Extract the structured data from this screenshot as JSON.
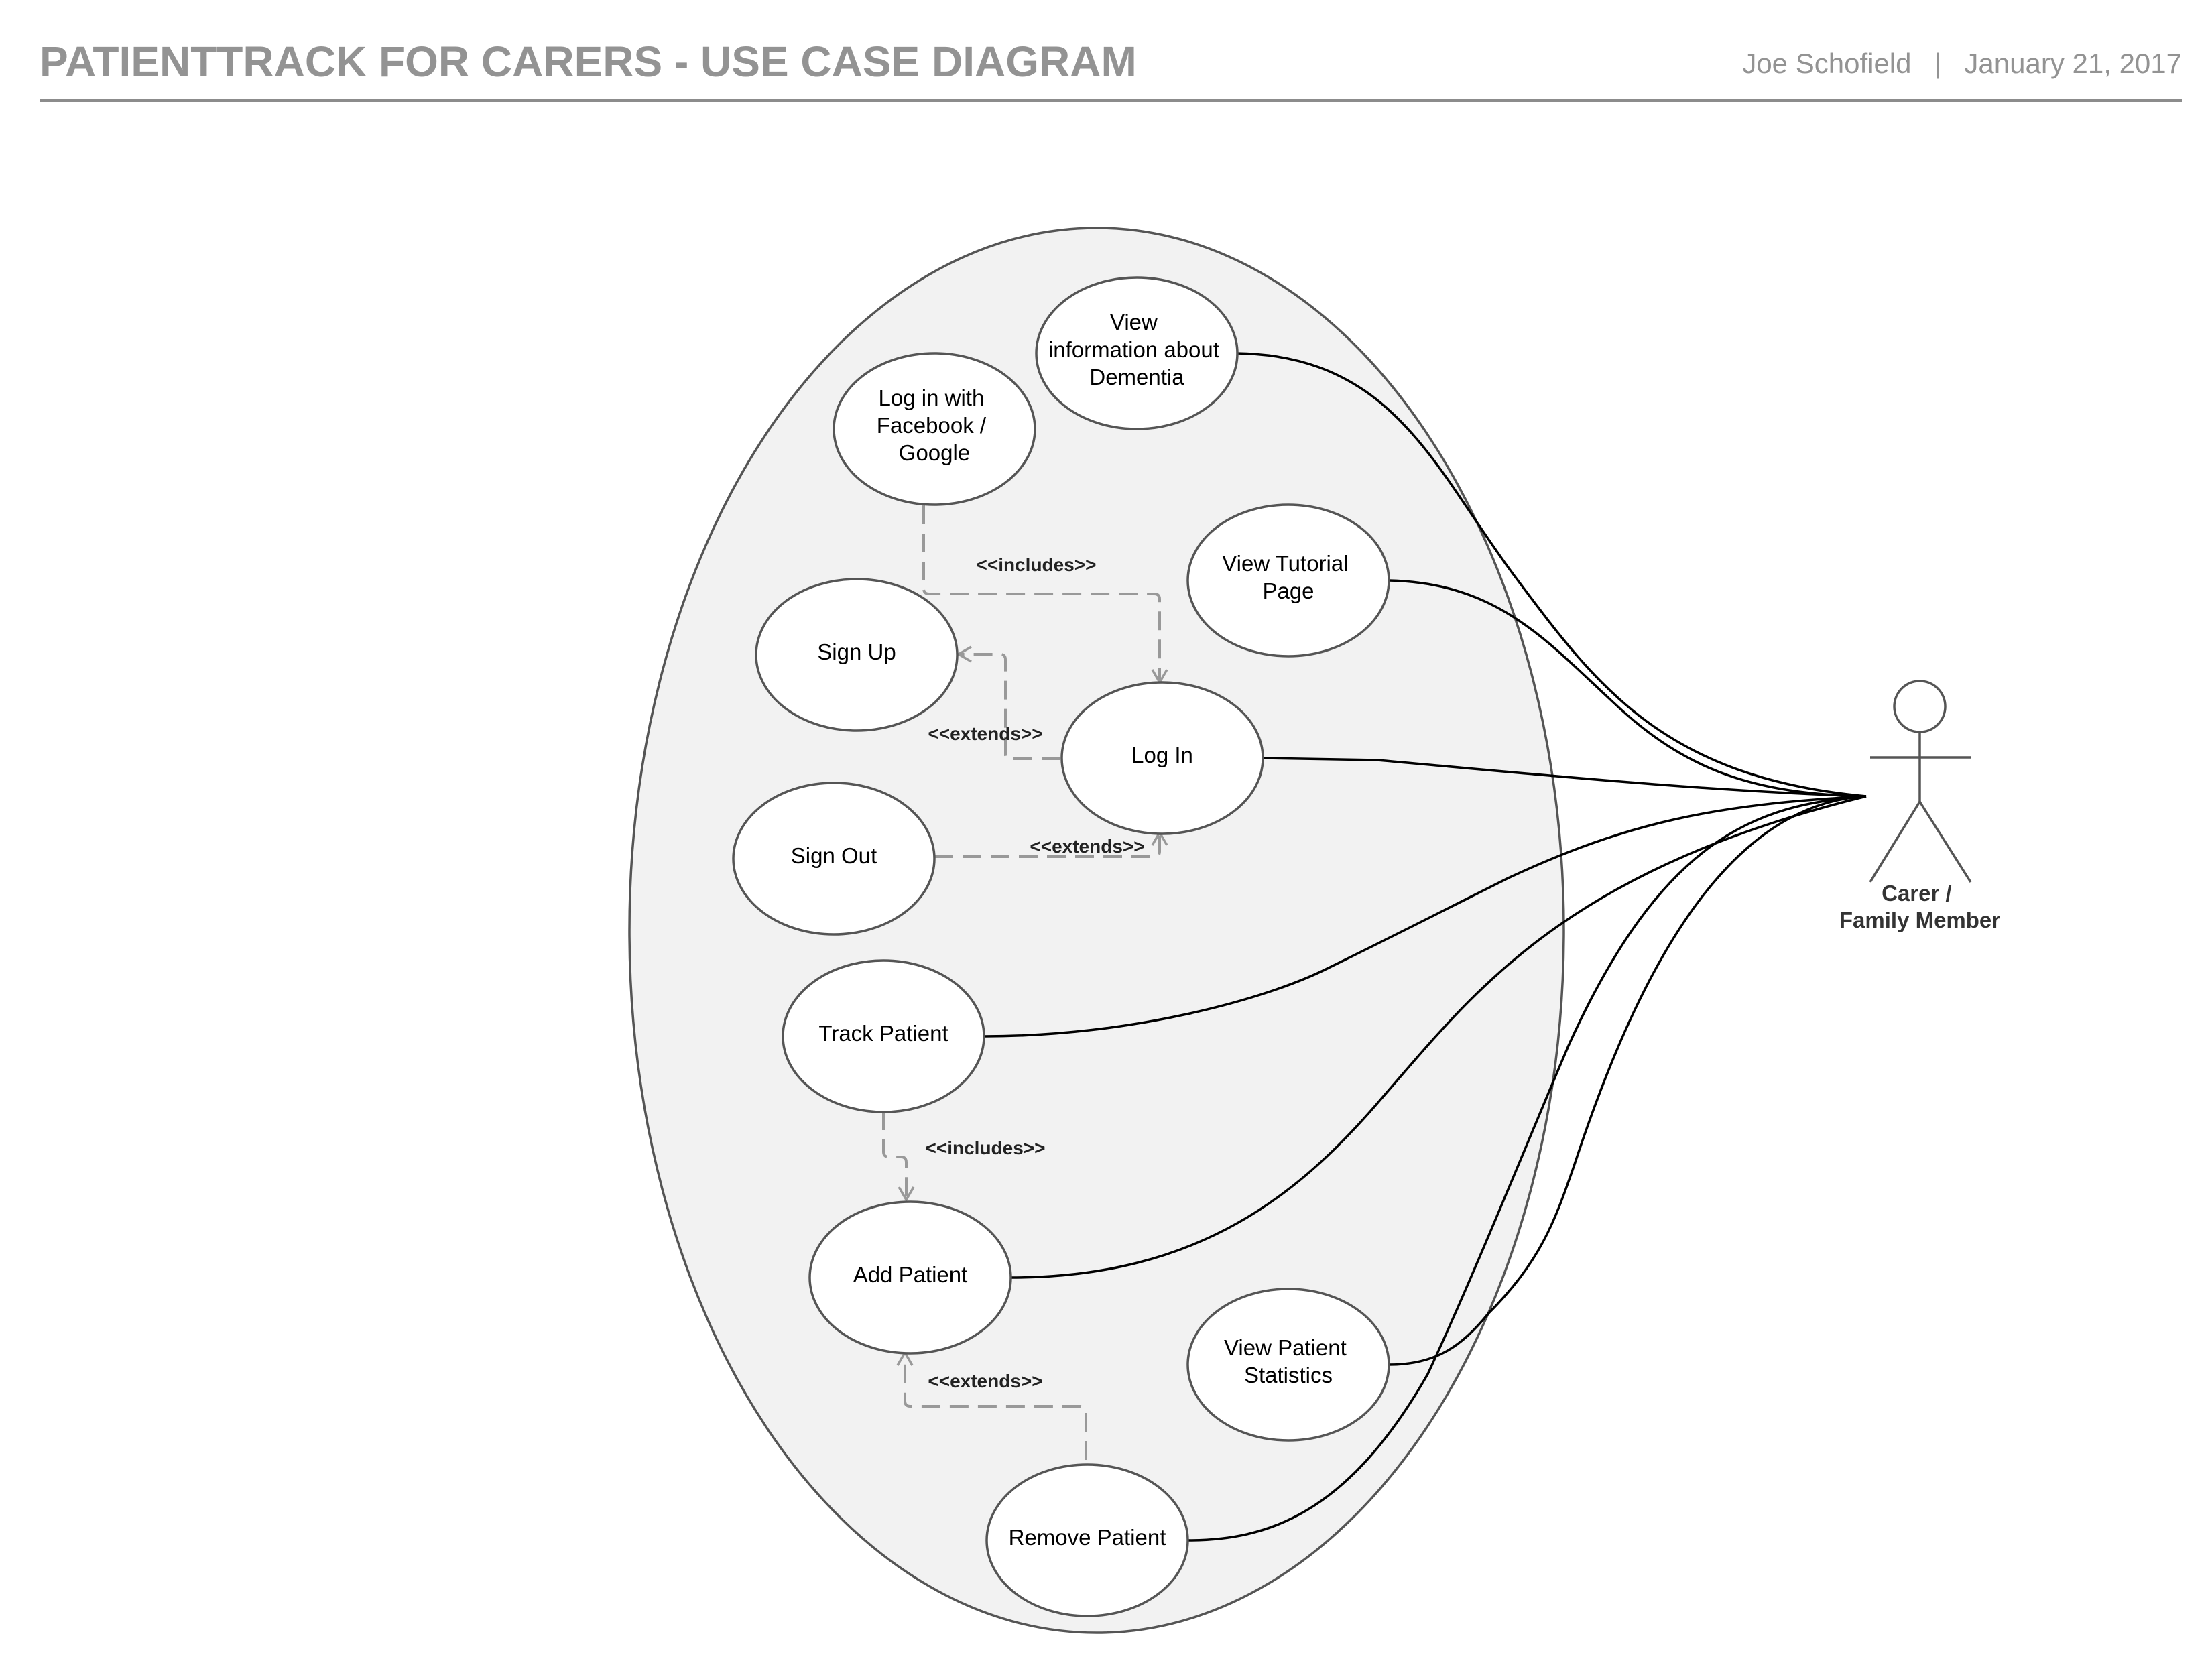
{
  "header": {
    "title": "PATIENTTRACK FOR CARERS - USE CASE DIAGRAM",
    "author": "Joe Schofield",
    "separator": "|",
    "date": "January 21, 2017"
  },
  "use_cases": {
    "view_dementia_info": [
      "View",
      "information about",
      "Dementia"
    ],
    "login_social": [
      "Log in with",
      "Facebook /",
      "Google"
    ],
    "view_tutorial": [
      "View Tutorial",
      "Page"
    ],
    "sign_up": [
      "Sign Up"
    ],
    "log_in": [
      "Log In"
    ],
    "sign_out": [
      "Sign Out"
    ],
    "track_patient": [
      "Track Patient"
    ],
    "add_patient": [
      "Add Patient"
    ],
    "view_statistics": [
      "View Patient",
      "Statistics"
    ],
    "remove_patient": [
      "Remove Patient"
    ]
  },
  "relationships": {
    "includes_login": "<<includes>>",
    "extends_signup": "<<extends>>",
    "extends_signout": "<<extends>>",
    "includes_track": "<<includes>>",
    "extends_remove": "<<extends>>"
  },
  "actor": {
    "label": [
      "Carer /",
      "Family Member"
    ]
  },
  "colors": {
    "system_fill": "#f2f2f2",
    "outline": "#555555",
    "association_line": "#000000",
    "dependency_line": "#999999",
    "header_text": "#939393"
  }
}
